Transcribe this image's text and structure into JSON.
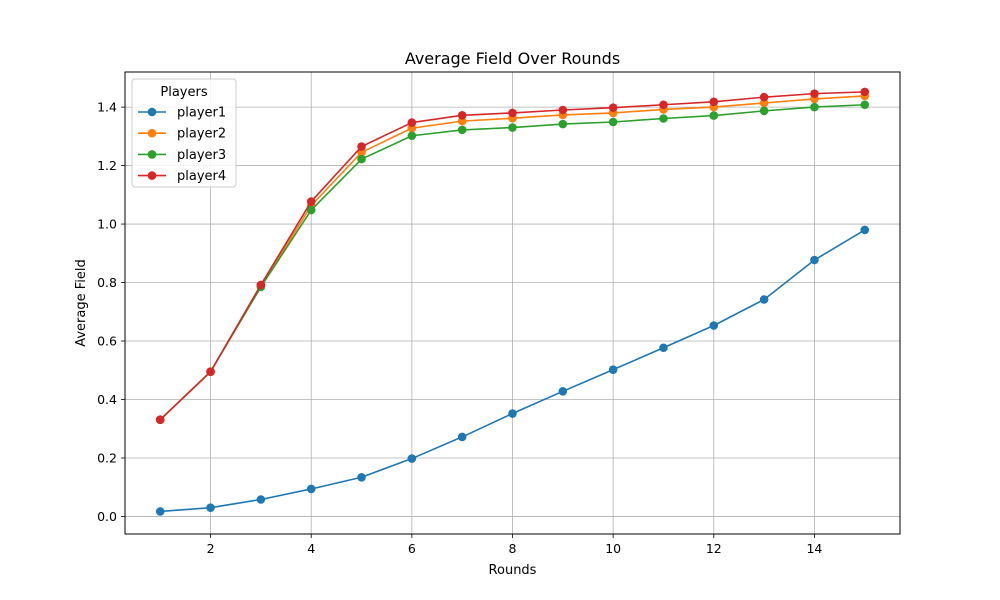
{
  "chart_data": {
    "type": "line",
    "title": "Average Field Over Rounds",
    "xlabel": "Rounds",
    "ylabel": "Average Field",
    "xlim": [
      0.3,
      15.7
    ],
    "ylim": [
      -0.06,
      1.52
    ],
    "xticks": [
      2,
      4,
      6,
      8,
      10,
      12,
      14
    ],
    "yticks": [
      0.0,
      0.2,
      0.4,
      0.6,
      0.8,
      1.0,
      1.2,
      1.4
    ],
    "xtick_labels": [
      "2",
      "4",
      "6",
      "8",
      "10",
      "12",
      "14"
    ],
    "ytick_labels": [
      "0.0",
      "0.2",
      "0.4",
      "0.6",
      "0.8",
      "1.0",
      "1.2",
      "1.4"
    ],
    "grid": true,
    "legend": {
      "title": "Players",
      "placement": "top-left"
    },
    "x": [
      1,
      2,
      3,
      4,
      5,
      6,
      7,
      8,
      9,
      10,
      11,
      12,
      13,
      14,
      15
    ],
    "series": [
      {
        "name": "player1",
        "color": "#1f77b4",
        "values": [
          0.017,
          0.03,
          0.058,
          0.094,
          0.134,
          0.198,
          0.272,
          0.352,
          0.428,
          0.502,
          0.577,
          0.653,
          0.742,
          0.877,
          0.98
        ]
      },
      {
        "name": "player2",
        "color": "#ff7f0e",
        "values": [
          0.331,
          0.495,
          0.788,
          1.063,
          1.245,
          1.328,
          1.352,
          1.362,
          1.373,
          1.38,
          1.392,
          1.4,
          1.414,
          1.428,
          1.438
        ]
      },
      {
        "name": "player3",
        "color": "#2ca02c",
        "values": [
          0.331,
          0.495,
          0.785,
          1.048,
          1.222,
          1.302,
          1.322,
          1.33,
          1.342,
          1.349,
          1.361,
          1.371,
          1.387,
          1.4,
          1.408
        ]
      },
      {
        "name": "player4",
        "color": "#d62728",
        "values": [
          0.331,
          0.495,
          0.792,
          1.077,
          1.265,
          1.347,
          1.372,
          1.38,
          1.39,
          1.398,
          1.408,
          1.418,
          1.434,
          1.446,
          1.452
        ]
      }
    ]
  }
}
